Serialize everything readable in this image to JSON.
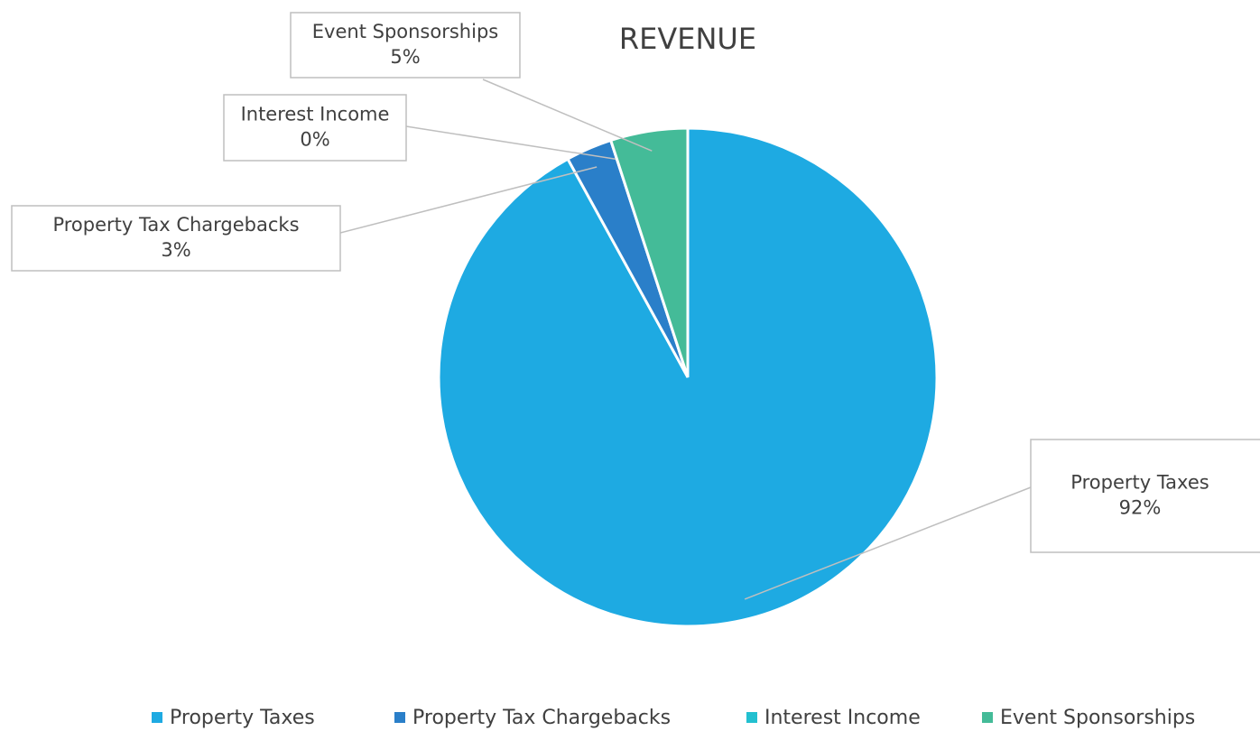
{
  "chart_data": {
    "type": "pie",
    "title": "REVENUE",
    "categories": [
      "Property Taxes",
      "Property Tax Chargebacks",
      "Interest Income",
      "Event Sponsorships"
    ],
    "values": [
      92,
      3,
      0,
      5
    ],
    "value_labels": [
      "92%",
      "3%",
      "0%",
      "5%"
    ],
    "colors": [
      "#1eaae2",
      "#2a7fc9",
      "#22c0d0",
      "#44bb98"
    ],
    "legend": "bottom"
  }
}
